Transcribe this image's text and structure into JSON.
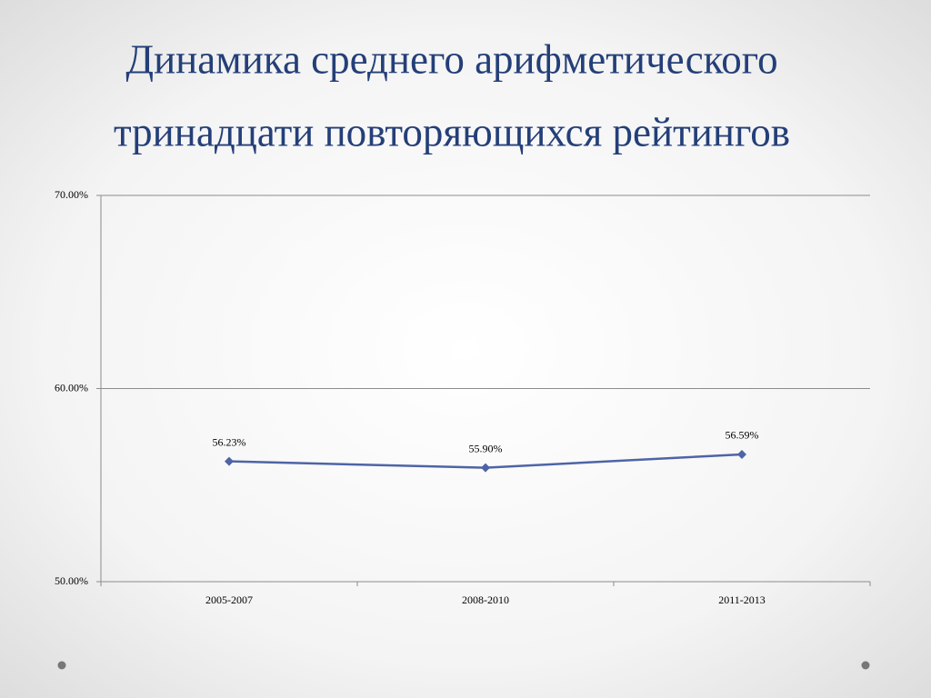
{
  "chart_data": {
    "type": "line",
    "title": [
      "Динамика среднего арифметического",
      "тринадцати повторяющихся рейтингов"
    ],
    "categories": [
      "2005-2007",
      "2008-2010",
      "2011-2013"
    ],
    "series": [
      {
        "color": "#4e64a6",
        "values": [
          56.23,
          55.9,
          56.59
        ],
        "value_labels": [
          "56.23%",
          "55.90%",
          "56.59%"
        ]
      }
    ],
    "ylim": [
      50,
      70
    ],
    "yticks": [
      {
        "value": 50,
        "label": "50.00%"
      },
      {
        "value": 60,
        "label": "60.00%"
      },
      {
        "value": 70,
        "label": "70.00%"
      }
    ],
    "grid": true
  }
}
